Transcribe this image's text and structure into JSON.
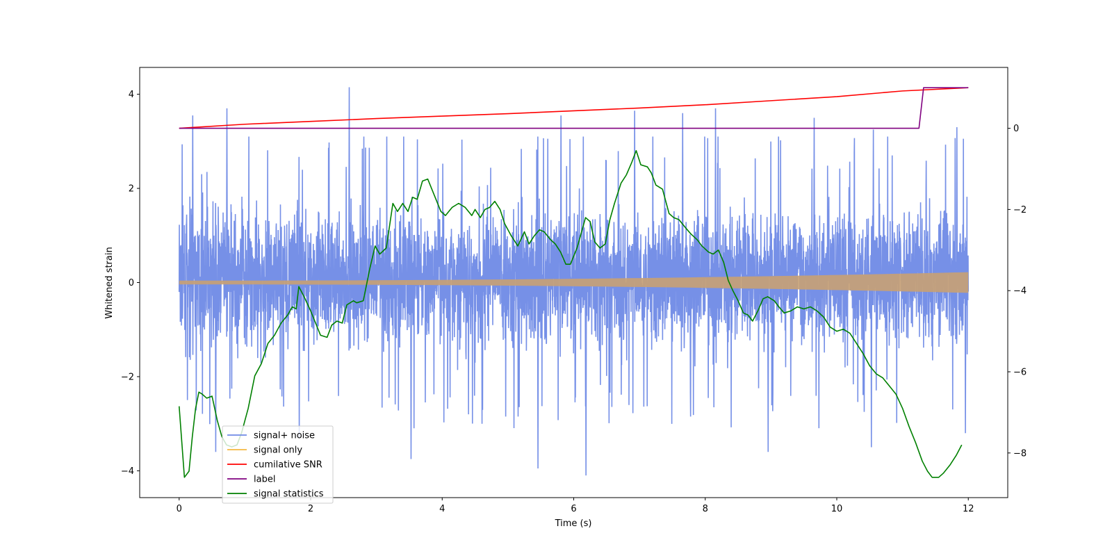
{
  "chart_data": {
    "type": "line",
    "title": "",
    "xlabel": "Time (s)",
    "ylabel": "Whitened strain",
    "y2label": "",
    "xlim": [
      -0.6,
      12.6
    ],
    "ylim": [
      -4.57,
      4.57
    ],
    "y2lim": [
      -9.1,
      1.5
    ],
    "xticks": [
      0,
      2,
      4,
      6,
      8,
      10,
      12
    ],
    "yticks": [
      -4,
      -2,
      0,
      2,
      4
    ],
    "y2ticks": [
      -8,
      -6,
      -4,
      -2,
      0
    ],
    "legend_position": "lower-left",
    "series": [
      {
        "name": "signal+ noise",
        "axis": "left",
        "color": "#6f8ae6",
        "kind": "noise-band",
        "time_range": [
          0,
          12
        ],
        "typical_envelope": [
          -1.9,
          2.1
        ],
        "peaks": [
          [
            0.2,
            3.55
          ],
          [
            0.72,
            3.7
          ],
          [
            2.58,
            4.15
          ],
          [
            5.8,
            3.55
          ],
          [
            6.92,
            3.65
          ],
          [
            7.65,
            3.6
          ],
          [
            8.15,
            3.7
          ],
          [
            9.65,
            3.5
          ],
          [
            10.55,
            3.25
          ],
          [
            11.82,
            3.3
          ],
          [
            0.55,
            -3.6
          ],
          [
            1.82,
            -3.3
          ],
          [
            3.52,
            -3.75
          ],
          [
            5.45,
            -3.95
          ],
          [
            6.18,
            -4.1
          ],
          [
            8.95,
            -3.6
          ],
          [
            10.52,
            -3.5
          ],
          [
            11.95,
            -3.2
          ]
        ]
      },
      {
        "name": "signal only",
        "axis": "left",
        "color": "#f5b841",
        "kind": "chirp-band",
        "time_range": [
          0,
          12
        ],
        "amplitude_start": 0.04,
        "amplitude_end": 0.22
      },
      {
        "name": "cumilative SNR",
        "axis": "right",
        "color": "#ff0000",
        "points": [
          [
            0,
            0.0
          ],
          [
            1,
            0.1
          ],
          [
            2,
            0.17
          ],
          [
            3,
            0.24
          ],
          [
            4,
            0.3
          ],
          [
            5,
            0.36
          ],
          [
            6,
            0.43
          ],
          [
            7,
            0.5
          ],
          [
            8,
            0.58
          ],
          [
            9,
            0.68
          ],
          [
            10,
            0.78
          ],
          [
            11,
            0.92
          ],
          [
            12,
            1.0
          ]
        ]
      },
      {
        "name": "label",
        "axis": "right",
        "color": "#800080",
        "points": [
          [
            0,
            0
          ],
          [
            11.25,
            0
          ],
          [
            11.32,
            1.0
          ],
          [
            12,
            1.0
          ]
        ]
      },
      {
        "name": "signal statistics",
        "axis": "right",
        "color": "#008000",
        "points": [
          [
            0,
            -6.85
          ],
          [
            0.08,
            -8.6
          ],
          [
            0.15,
            -8.45
          ],
          [
            0.2,
            -7.6
          ],
          [
            0.25,
            -6.9
          ],
          [
            0.3,
            -6.5
          ],
          [
            0.35,
            -6.55
          ],
          [
            0.42,
            -6.65
          ],
          [
            0.5,
            -6.6
          ],
          [
            0.58,
            -7.2
          ],
          [
            0.65,
            -7.6
          ],
          [
            0.72,
            -7.8
          ],
          [
            0.8,
            -7.85
          ],
          [
            0.88,
            -7.8
          ],
          [
            0.95,
            -7.5
          ],
          [
            1.05,
            -6.9
          ],
          [
            1.15,
            -6.1
          ],
          [
            1.25,
            -5.8
          ],
          [
            1.35,
            -5.3
          ],
          [
            1.45,
            -5.1
          ],
          [
            1.55,
            -4.8
          ],
          [
            1.65,
            -4.6
          ],
          [
            1.72,
            -4.4
          ],
          [
            1.78,
            -4.45
          ],
          [
            1.82,
            -3.9
          ],
          [
            1.9,
            -4.15
          ],
          [
            2.0,
            -4.5
          ],
          [
            2.1,
            -4.9
          ],
          [
            2.15,
            -5.1
          ],
          [
            2.25,
            -5.15
          ],
          [
            2.32,
            -4.85
          ],
          [
            2.4,
            -4.75
          ],
          [
            2.48,
            -4.8
          ],
          [
            2.55,
            -4.35
          ],
          [
            2.65,
            -4.25
          ],
          [
            2.7,
            -4.3
          ],
          [
            2.8,
            -4.25
          ],
          [
            2.9,
            -3.45
          ],
          [
            2.98,
            -2.9
          ],
          [
            3.05,
            -3.1
          ],
          [
            3.15,
            -2.95
          ],
          [
            3.25,
            -1.85
          ],
          [
            3.32,
            -2.05
          ],
          [
            3.4,
            -1.85
          ],
          [
            3.48,
            -2.05
          ],
          [
            3.55,
            -1.7
          ],
          [
            3.62,
            -1.75
          ],
          [
            3.7,
            -1.3
          ],
          [
            3.78,
            -1.25
          ],
          [
            3.88,
            -1.65
          ],
          [
            3.98,
            -2.05
          ],
          [
            4.05,
            -2.15
          ],
          [
            4.15,
            -1.95
          ],
          [
            4.25,
            -1.85
          ],
          [
            4.35,
            -1.95
          ],
          [
            4.45,
            -2.15
          ],
          [
            4.5,
            -2.0
          ],
          [
            4.58,
            -2.2
          ],
          [
            4.65,
            -2.0
          ],
          [
            4.72,
            -1.95
          ],
          [
            4.8,
            -1.8
          ],
          [
            4.88,
            -2.0
          ],
          [
            4.95,
            -2.35
          ],
          [
            5.05,
            -2.65
          ],
          [
            5.15,
            -2.9
          ],
          [
            5.25,
            -2.55
          ],
          [
            5.32,
            -2.85
          ],
          [
            5.4,
            -2.65
          ],
          [
            5.48,
            -2.5
          ],
          [
            5.55,
            -2.55
          ],
          [
            5.65,
            -2.75
          ],
          [
            5.72,
            -2.85
          ],
          [
            5.8,
            -3.05
          ],
          [
            5.88,
            -3.35
          ],
          [
            5.95,
            -3.35
          ],
          [
            6.05,
            -2.95
          ],
          [
            6.12,
            -2.55
          ],
          [
            6.18,
            -2.2
          ],
          [
            6.25,
            -2.3
          ],
          [
            6.32,
            -2.8
          ],
          [
            6.4,
            -2.95
          ],
          [
            6.48,
            -2.85
          ],
          [
            6.55,
            -2.25
          ],
          [
            6.62,
            -1.85
          ],
          [
            6.72,
            -1.35
          ],
          [
            6.8,
            -1.15
          ],
          [
            6.88,
            -0.85
          ],
          [
            6.95,
            -0.55
          ],
          [
            7.02,
            -0.9
          ],
          [
            7.12,
            -0.95
          ],
          [
            7.18,
            -1.1
          ],
          [
            7.25,
            -1.4
          ],
          [
            7.35,
            -1.5
          ],
          [
            7.45,
            -2.1
          ],
          [
            7.52,
            -2.2
          ],
          [
            7.6,
            -2.25
          ],
          [
            7.7,
            -2.45
          ],
          [
            7.78,
            -2.6
          ],
          [
            7.88,
            -2.75
          ],
          [
            7.95,
            -2.9
          ],
          [
            8.05,
            -3.05
          ],
          [
            8.12,
            -3.1
          ],
          [
            8.2,
            -3.0
          ],
          [
            8.28,
            -3.3
          ],
          [
            8.35,
            -3.75
          ],
          [
            8.42,
            -4.0
          ],
          [
            8.5,
            -4.25
          ],
          [
            8.58,
            -4.55
          ],
          [
            8.65,
            -4.6
          ],
          [
            8.72,
            -4.75
          ],
          [
            8.8,
            -4.5
          ],
          [
            8.88,
            -4.2
          ],
          [
            8.95,
            -4.15
          ],
          [
            9.05,
            -4.25
          ],
          [
            9.12,
            -4.4
          ],
          [
            9.2,
            -4.55
          ],
          [
            9.3,
            -4.5
          ],
          [
            9.4,
            -4.4
          ],
          [
            9.5,
            -4.45
          ],
          [
            9.6,
            -4.4
          ],
          [
            9.7,
            -4.5
          ],
          [
            9.8,
            -4.65
          ],
          [
            9.9,
            -4.9
          ],
          [
            10.0,
            -5.0
          ],
          [
            10.1,
            -4.95
          ],
          [
            10.2,
            -5.05
          ],
          [
            10.3,
            -5.3
          ],
          [
            10.4,
            -5.55
          ],
          [
            10.5,
            -5.85
          ],
          [
            10.6,
            -6.05
          ],
          [
            10.7,
            -6.15
          ],
          [
            10.8,
            -6.35
          ],
          [
            10.9,
            -6.55
          ],
          [
            11.0,
            -6.9
          ],
          [
            11.1,
            -7.35
          ],
          [
            11.2,
            -7.75
          ],
          [
            11.3,
            -8.2
          ],
          [
            11.38,
            -8.45
          ],
          [
            11.45,
            -8.6
          ],
          [
            11.55,
            -8.6
          ],
          [
            11.62,
            -8.5
          ],
          [
            11.72,
            -8.3
          ],
          [
            11.82,
            -8.05
          ],
          [
            11.9,
            -7.8
          ]
        ]
      }
    ]
  }
}
